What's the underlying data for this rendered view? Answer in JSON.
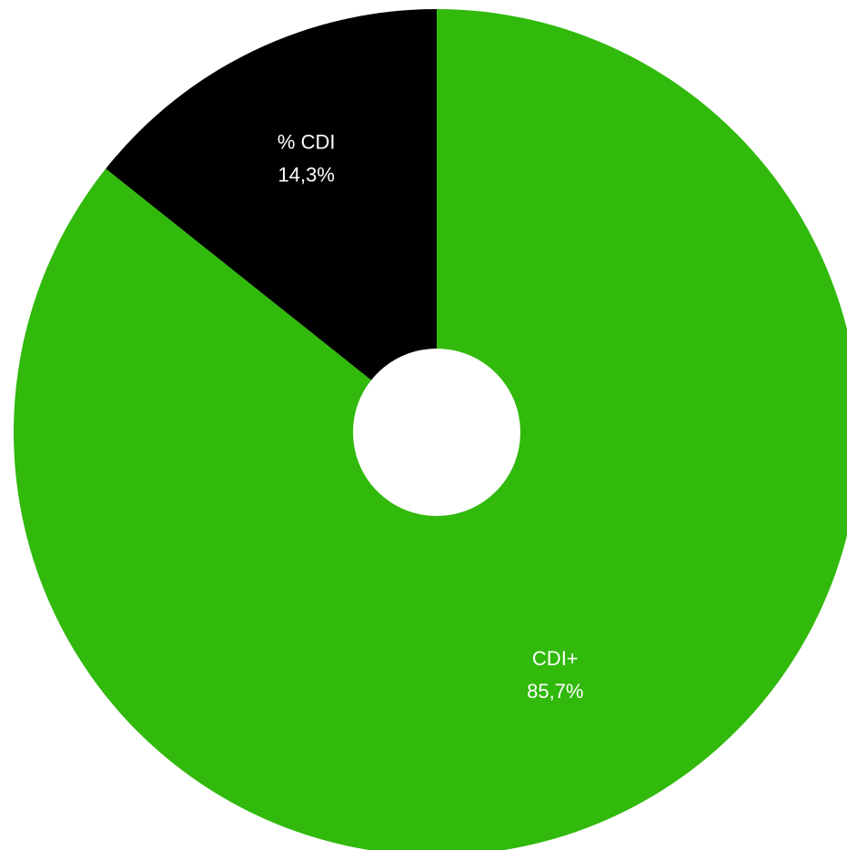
{
  "chart_data": {
    "type": "pie",
    "donut": true,
    "slices": [
      {
        "name": "% CDI",
        "value": 14.3,
        "label": "14,3%",
        "color": "#000000"
      },
      {
        "name": "CDI+",
        "value": 85.7,
        "label": "85,7%",
        "color": "#31b90c"
      }
    ],
    "legend": "none",
    "grid": false,
    "background": "#ffffff"
  }
}
